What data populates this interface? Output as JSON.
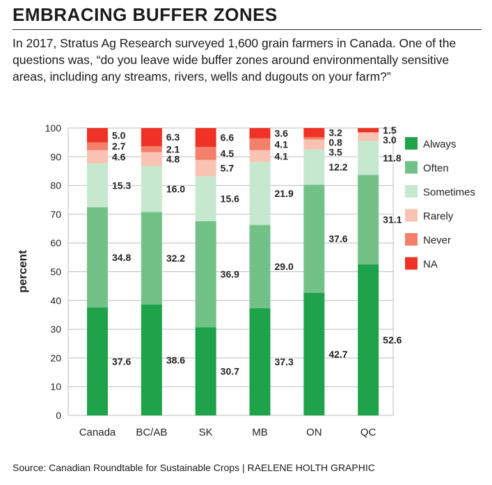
{
  "title": "EMBRACING BUFFER ZONES",
  "intro": "In 2017, Stratus Ag Research surveyed 1,600 grain farmers in Canada. One of the questions was, “do you leave wide buffer zones around environmentally sensitive areas, including any streams, rivers, wells and dugouts on your farm?”",
  "source": "Source: Canadian Roundtable for Sustainable Crops  |  RAELENE HOLTH GRAPHIC",
  "chart_data": {
    "type": "bar",
    "stacked": true,
    "title": "",
    "xlabel": "",
    "ylabel": "percent",
    "ylim": [
      0,
      100
    ],
    "yticks": [
      0,
      10,
      20,
      30,
      40,
      50,
      60,
      70,
      80,
      90,
      100
    ],
    "grid": true,
    "legend_position": "right",
    "categories": [
      "Canada",
      "BC/AB",
      "SK",
      "MB",
      "ON",
      "QC"
    ],
    "series": [
      {
        "name": "Always",
        "color": "#1ea34a",
        "values": [
          37.6,
          38.6,
          30.7,
          37.3,
          42.7,
          52.6
        ],
        "labels": [
          "37.6",
          "38.6",
          "30.7",
          "37.3",
          "42.7",
          "52.6"
        ]
      },
      {
        "name": "Often",
        "color": "#72c287",
        "values": [
          34.8,
          32.2,
          36.9,
          29.0,
          37.6,
          31.1
        ],
        "labels": [
          "34.8",
          "32.2",
          "36.9",
          "29.0",
          "37.6",
          "31.1"
        ]
      },
      {
        "name": "Sometimes",
        "color": "#c6e8cf",
        "values": [
          15.3,
          16.0,
          15.6,
          21.9,
          12.2,
          11.8
        ],
        "labels": [
          "15.3",
          "16.0",
          "15.6",
          "21.9",
          "12.2",
          "11.8"
        ]
      },
      {
        "name": "Rarely",
        "color": "#f9c3b4",
        "values": [
          4.6,
          4.8,
          5.7,
          4.1,
          3.5,
          3.0
        ],
        "labels": [
          "4.6",
          "4.8",
          "5.7",
          "4.1",
          "3.5",
          "3.0"
        ]
      },
      {
        "name": "Never",
        "color": "#f47f6a",
        "values": [
          2.7,
          2.1,
          4.5,
          4.1,
          0.8,
          0.0
        ],
        "labels": [
          "2.7",
          "2.1",
          "4.5",
          "4.1",
          "0.8",
          ""
        ]
      },
      {
        "name": "NA",
        "color": "#ef3225",
        "values": [
          5.0,
          6.3,
          6.6,
          3.6,
          3.2,
          1.5
        ],
        "labels": [
          "5.0",
          "6.3",
          "6.6",
          "3.6",
          "3.2",
          "1.5"
        ]
      }
    ]
  }
}
